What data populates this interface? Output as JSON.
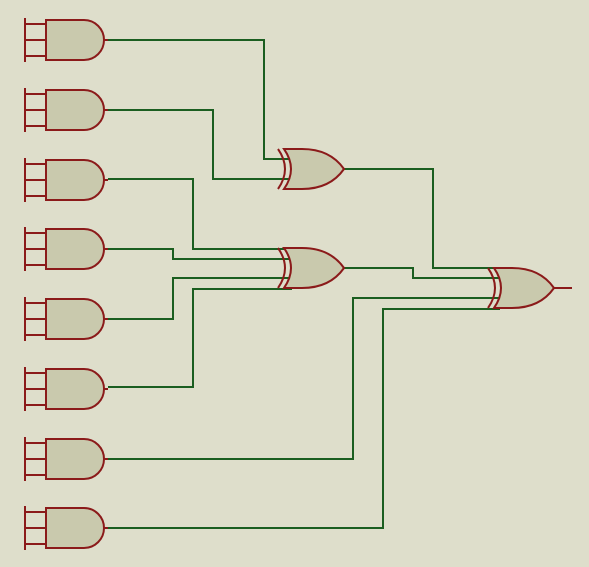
{
  "colors": {
    "background": "#dedecb",
    "gate_fill": "#c9c9ad",
    "gate_outline": "#8b1a1a",
    "wire": "#1b5e20"
  },
  "circuit": {
    "and_gates": [
      {
        "id": "and1",
        "inputs": 3
      },
      {
        "id": "and2",
        "inputs": 3
      },
      {
        "id": "and3",
        "inputs": 3
      },
      {
        "id": "and4",
        "inputs": 3
      },
      {
        "id": "and5",
        "inputs": 3
      },
      {
        "id": "and6",
        "inputs": 3
      },
      {
        "id": "and7",
        "inputs": 3
      },
      {
        "id": "and8",
        "inputs": 3
      }
    ],
    "or_gates": [
      {
        "id": "or1",
        "inputs": [
          "and1",
          "and2"
        ]
      },
      {
        "id": "or2",
        "inputs": [
          "and3",
          "and4",
          "and5",
          "and6"
        ]
      },
      {
        "id": "or3",
        "inputs": [
          "or1",
          "or2",
          "and7",
          "and8"
        ]
      }
    ],
    "output": "or3"
  }
}
